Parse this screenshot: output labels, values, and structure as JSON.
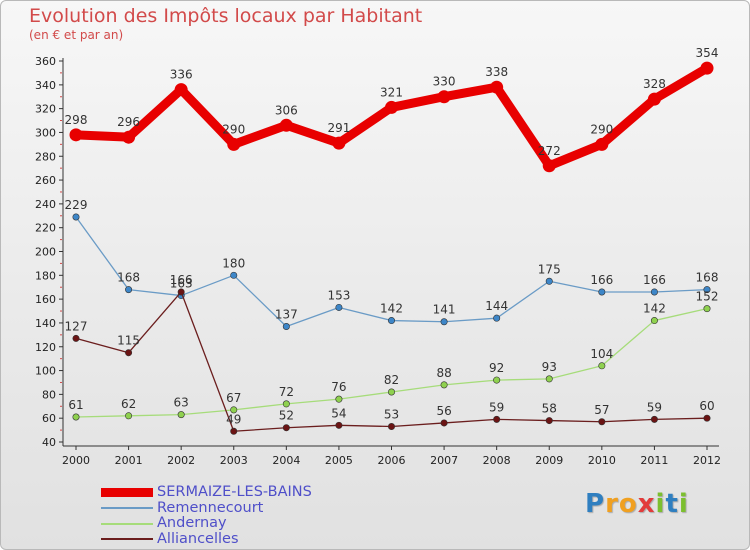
{
  "header": {
    "title": "Evolution des Impôts locaux par Habitant",
    "subtitle": "(en € et par an)"
  },
  "logo": {
    "text": "Proxiti",
    "letters": [
      "P",
      "r",
      "o",
      "x",
      "i",
      "t",
      "i"
    ]
  },
  "colors": {
    "title": "#d24a4a",
    "axis": "#333333",
    "tick_label": "#222222",
    "data_label": "#333333",
    "legend_text": "#4f4fc9",
    "logo_letters": [
      "#2f7fc0",
      "#f0a020",
      "#f0a020",
      "#e23b3b",
      "#7cbf2f",
      "#2f7fc0",
      "#7cbf2f"
    ]
  },
  "chart_data": {
    "type": "line",
    "title": "Evolution des Impôts locaux par Habitant",
    "subtitle": "(en € et par an)",
    "xlabel": "",
    "ylabel": "",
    "x": [
      "2000",
      "2001",
      "2002",
      "2003",
      "2004",
      "2005",
      "2006",
      "2007",
      "2008",
      "2009",
      "2010",
      "2011",
      "2012"
    ],
    "ylim": [
      40,
      360
    ],
    "yticks": [
      40,
      60,
      80,
      100,
      120,
      140,
      160,
      180,
      200,
      220,
      240,
      260,
      280,
      300,
      320,
      340,
      360
    ],
    "grid": false,
    "legend_position": "bottom-left",
    "series": [
      {
        "name": "SERMAIZE-LES-BAINS",
        "color": "#e80000",
        "marker_color": "#e80000",
        "emphasis": "thick",
        "values": [
          298,
          296,
          336,
          290,
          306,
          291,
          321,
          330,
          338,
          272,
          290,
          328,
          354
        ]
      },
      {
        "name": "Remennecourt",
        "color": "#6a9bc6",
        "marker_color": "#3d86c8",
        "emphasis": "normal",
        "values": [
          229,
          168,
          163,
          180,
          137,
          153,
          142,
          141,
          144,
          175,
          166,
          166,
          168
        ]
      },
      {
        "name": "Andernay",
        "color": "#a6dc7a",
        "marker_color": "#8fd14f",
        "emphasis": "normal",
        "values": [
          61,
          62,
          63,
          67,
          72,
          76,
          82,
          88,
          92,
          93,
          104,
          142,
          152
        ]
      },
      {
        "name": "Alliancelles",
        "color": "#6b1e1e",
        "marker_color": "#6b1414",
        "emphasis": "normal",
        "values": [
          127,
          115,
          166,
          49,
          52,
          54,
          53,
          56,
          59,
          58,
          57,
          59,
          60
        ]
      }
    ]
  }
}
